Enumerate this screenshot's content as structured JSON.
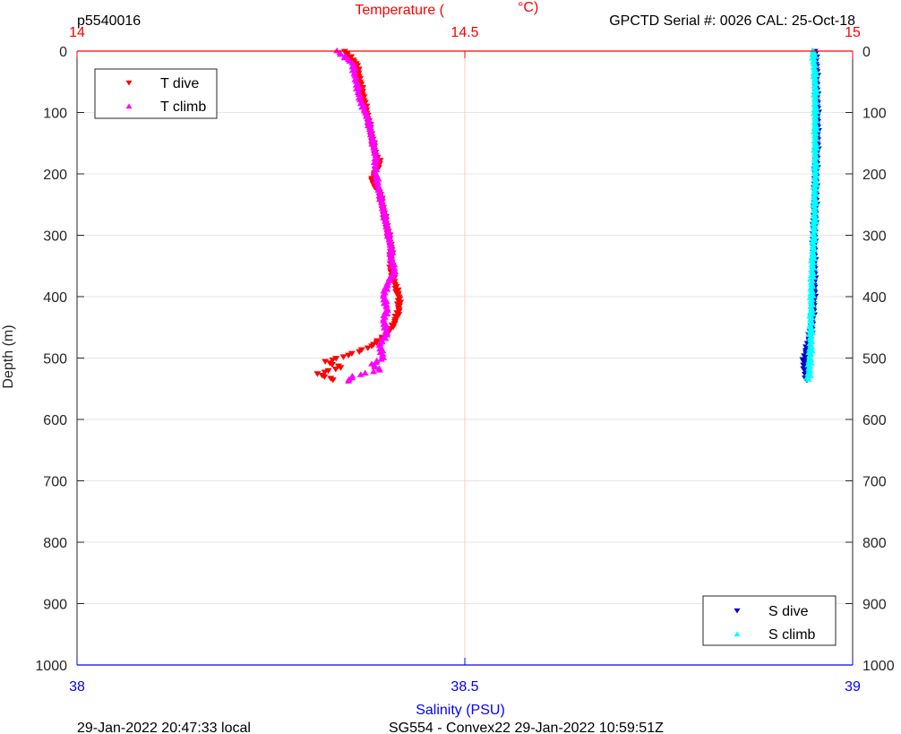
{
  "header": {
    "profile_id": "p5540016",
    "serial": "GPCTD Serial #: 0026 CAL: 25-Oct-18"
  },
  "footer": {
    "local_time": "29-Jan-2022 20:47:33 local",
    "mission": "SG554 - Convex22 29-Jan-2022 10:59:51Z"
  },
  "colors": {
    "temperature_axis": "#ff0000",
    "salinity_axis": "#0000ff",
    "t_dive": "#ff0000",
    "t_climb": "#ff00ff",
    "s_dive": "#0000cc",
    "s_climb": "#00ffff",
    "grid": "#e6e6e6",
    "midline": "#ffc8c8"
  },
  "chart_data": {
    "type": "scatter",
    "ylabel": "Depth (m)",
    "ylim": [
      0,
      1000
    ],
    "y_reversed": true,
    "yticks": [
      "0",
      "100",
      "200",
      "300",
      "400",
      "500",
      "600",
      "700",
      "800",
      "900",
      "1000"
    ],
    "ytick_values": [
      0,
      100,
      200,
      300,
      400,
      500,
      600,
      700,
      800,
      900,
      1000
    ],
    "grid": true,
    "top_axis": {
      "label_left": "Temperature (",
      "label_right": "°C)",
      "range": [
        14,
        15
      ],
      "ticks": [
        "14",
        "14.5",
        "15"
      ],
      "tick_values": [
        14,
        14.5,
        15
      ]
    },
    "bottom_axis": {
      "label": "Salinity (PSU)",
      "range": [
        38,
        39
      ],
      "ticks": [
        "38",
        "38.5",
        "39"
      ],
      "tick_values": [
        38,
        38.5,
        39
      ]
    },
    "legend_temperature": {
      "placement": "top-left",
      "entries": [
        "T dive",
        "T climb"
      ]
    },
    "legend_salinity": {
      "placement": "bottom-right",
      "entries": [
        "S dive",
        "S climb"
      ]
    },
    "series": [
      {
        "name": "T dive",
        "axis": "temperature",
        "marker": "triangle-down",
        "points": [
          [
            14.345,
            0
          ],
          [
            14.36,
            20
          ],
          [
            14.365,
            50
          ],
          [
            14.37,
            80
          ],
          [
            14.375,
            110
          ],
          [
            14.38,
            140
          ],
          [
            14.385,
            170
          ],
          [
            14.39,
            180
          ],
          [
            14.38,
            210
          ],
          [
            14.39,
            230
          ],
          [
            14.395,
            260
          ],
          [
            14.4,
            290
          ],
          [
            14.405,
            320
          ],
          [
            14.405,
            340
          ],
          [
            14.405,
            360
          ],
          [
            14.41,
            380
          ],
          [
            14.415,
            400
          ],
          [
            14.415,
            420
          ],
          [
            14.41,
            440
          ],
          [
            14.4,
            460
          ],
          [
            14.38,
            480
          ],
          [
            14.35,
            495
          ],
          [
            14.32,
            505
          ],
          [
            14.34,
            515
          ],
          [
            14.31,
            525
          ],
          [
            14.33,
            535
          ]
        ]
      },
      {
        "name": "T climb",
        "axis": "temperature",
        "marker": "triangle-up",
        "points": [
          [
            14.335,
            0
          ],
          [
            14.355,
            20
          ],
          [
            14.36,
            50
          ],
          [
            14.365,
            80
          ],
          [
            14.375,
            110
          ],
          [
            14.38,
            140
          ],
          [
            14.385,
            170
          ],
          [
            14.385,
            200
          ],
          [
            14.39,
            230
          ],
          [
            14.395,
            260
          ],
          [
            14.4,
            290
          ],
          [
            14.405,
            320
          ],
          [
            14.405,
            340
          ],
          [
            14.41,
            360
          ],
          [
            14.4,
            380
          ],
          [
            14.395,
            400
          ],
          [
            14.4,
            420
          ],
          [
            14.395,
            440
          ],
          [
            14.4,
            460
          ],
          [
            14.39,
            480
          ],
          [
            14.395,
            500
          ],
          [
            14.38,
            510
          ],
          [
            14.39,
            520
          ],
          [
            14.355,
            530
          ],
          [
            14.35,
            538
          ]
        ]
      },
      {
        "name": "S dive",
        "axis": "salinity",
        "marker": "triangle-down",
        "points": [
          [
            38.951,
            0
          ],
          [
            38.953,
            30
          ],
          [
            38.953,
            60
          ],
          [
            38.954,
            90
          ],
          [
            38.954,
            120
          ],
          [
            38.954,
            150
          ],
          [
            38.953,
            180
          ],
          [
            38.952,
            210
          ],
          [
            38.952,
            240
          ],
          [
            38.951,
            270
          ],
          [
            38.95,
            300
          ],
          [
            38.95,
            330
          ],
          [
            38.95,
            360
          ],
          [
            38.95,
            390
          ],
          [
            38.949,
            420
          ],
          [
            38.947,
            450
          ],
          [
            38.944,
            470
          ],
          [
            38.94,
            490
          ],
          [
            38.937,
            505
          ],
          [
            38.939,
            520
          ],
          [
            38.941,
            535
          ]
        ]
      },
      {
        "name": "S climb",
        "axis": "salinity",
        "marker": "triangle-up",
        "points": [
          [
            38.949,
            0
          ],
          [
            38.951,
            30
          ],
          [
            38.952,
            60
          ],
          [
            38.952,
            90
          ],
          [
            38.952,
            120
          ],
          [
            38.952,
            150
          ],
          [
            38.952,
            180
          ],
          [
            38.952,
            210
          ],
          [
            38.951,
            240
          ],
          [
            38.951,
            270
          ],
          [
            38.95,
            300
          ],
          [
            38.949,
            330
          ],
          [
            38.948,
            360
          ],
          [
            38.947,
            390
          ],
          [
            38.947,
            420
          ],
          [
            38.946,
            450
          ],
          [
            38.946,
            480
          ],
          [
            38.945,
            500
          ],
          [
            38.944,
            520
          ],
          [
            38.943,
            535
          ]
        ]
      }
    ]
  }
}
